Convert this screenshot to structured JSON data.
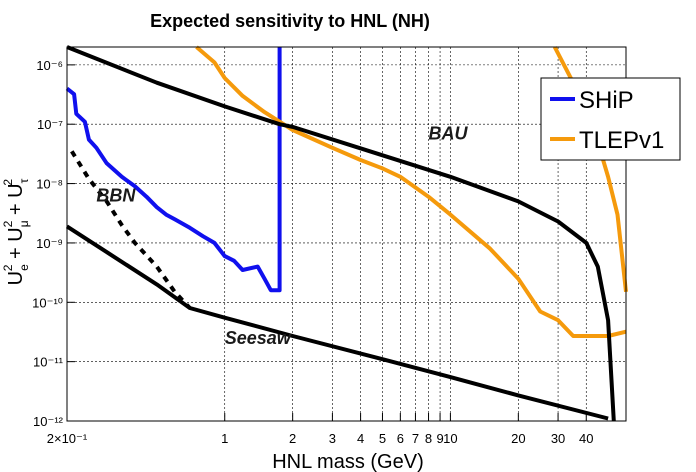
{
  "chart_data": {
    "type": "line",
    "title": "Expected sensitivity to HNL (NH)",
    "xlabel": "HNL mass (GeV)",
    "ylabel": "U_e^2 + U_μ^2 + U_τ^2",
    "x_scale": "log",
    "y_scale": "log",
    "xlim": [
      0.2,
      60
    ],
    "ylim": [
      1e-12,
      2e-06
    ],
    "grid": true,
    "legend_position": "top-right",
    "x_ticks": [
      {
        "value": 0.2,
        "label": "2×10⁻¹"
      },
      {
        "value": 1,
        "label": "1"
      },
      {
        "value": 2,
        "label": "2"
      },
      {
        "value": 3,
        "label": "3"
      },
      {
        "value": 4,
        "label": "4"
      },
      {
        "value": 5,
        "label": "5"
      },
      {
        "value": 6,
        "label": "6"
      },
      {
        "value": 7,
        "label": "7"
      },
      {
        "value": 8,
        "label": "8"
      },
      {
        "value": 9,
        "label": "9"
      },
      {
        "value": 10,
        "label": "10"
      },
      {
        "value": 20,
        "label": "20"
      },
      {
        "value": 30,
        "label": "30"
      },
      {
        "value": 40,
        "label": "40"
      }
    ],
    "y_ticks": [
      {
        "value": 1e-12,
        "label": "10⁻¹²"
      },
      {
        "value": 1e-11,
        "label": "10⁻¹¹"
      },
      {
        "value": 1e-10,
        "label": "10⁻¹⁰"
      },
      {
        "value": 1e-09,
        "label": "10⁻⁹"
      },
      {
        "value": 1e-08,
        "label": "10⁻⁸"
      },
      {
        "value": 1e-07,
        "label": "10⁻⁷"
      },
      {
        "value": 1e-06,
        "label": "10⁻⁶"
      }
    ],
    "annotations": [
      {
        "text": "BAU",
        "x": 8.0,
        "y": 5.5e-08
      },
      {
        "text": "BBN",
        "x": 0.27,
        "y": 5e-09
      },
      {
        "text": "Seesaw",
        "x": 1.0,
        "y": 2e-11
      }
    ],
    "series": [
      {
        "name": "SHiP",
        "color": "#1010ee",
        "in_legend": true,
        "points": [
          [
            0.2,
            4e-07
          ],
          [
            0.215,
            3.2e-07
          ],
          [
            0.22,
            1.5e-07
          ],
          [
            0.24,
            1.1e-07
          ],
          [
            0.25,
            5.5e-08
          ],
          [
            0.27,
            4e-08
          ],
          [
            0.3,
            2.2e-08
          ],
          [
            0.35,
            1.3e-08
          ],
          [
            0.4,
            9e-09
          ],
          [
            0.45,
            6e-09
          ],
          [
            0.5,
            4e-09
          ],
          [
            0.55,
            3e-09
          ],
          [
            0.6,
            2.5e-09
          ],
          [
            0.7,
            1.8e-09
          ],
          [
            0.8,
            1.3e-09
          ],
          [
            0.9,
            1e-09
          ],
          [
            1.0,
            6e-10
          ],
          [
            1.1,
            5e-10
          ],
          [
            1.2,
            3.5e-10
          ],
          [
            1.4,
            4e-10
          ],
          [
            1.5,
            2.5e-10
          ],
          [
            1.6,
            1.6e-10
          ],
          [
            1.75,
            1.6e-10
          ],
          [
            1.75,
            2e-06
          ]
        ]
      },
      {
        "name": "TLEPv1",
        "color": "#f59a0c",
        "in_legend": true,
        "points": [
          [
            0.75,
            2e-06
          ],
          [
            0.9,
            1.1e-06
          ],
          [
            1.0,
            6e-07
          ],
          [
            1.2,
            3e-07
          ],
          [
            1.5,
            1.6e-07
          ],
          [
            2.0,
            8e-08
          ],
          [
            3.0,
            4e-08
          ],
          [
            4.0,
            2.5e-08
          ],
          [
            5.0,
            1.8e-08
          ],
          [
            6.0,
            1.3e-08
          ],
          [
            8.0,
            6e-09
          ],
          [
            10.0,
            3e-09
          ],
          [
            15.0,
            8e-10
          ],
          [
            20.0,
            2.5e-10
          ],
          [
            25.0,
            7e-11
          ],
          [
            30.0,
            5e-11
          ],
          [
            35.0,
            2.7e-11
          ],
          [
            50.0,
            2.7e-11
          ],
          [
            60.0,
            3.2e-11
          ]
        ]
      },
      {
        "name": "TLEPv1-upper",
        "color": "#f59a0c",
        "in_legend": false,
        "points": [
          [
            29.0,
            2e-06
          ],
          [
            35.0,
            5e-07
          ],
          [
            40.0,
            1.8e-07
          ],
          [
            45.0,
            5e-08
          ],
          [
            50.0,
            1.3e-08
          ],
          [
            55.0,
            3e-09
          ],
          [
            60.0,
            1.5e-10
          ]
        ]
      },
      {
        "name": "BAU",
        "color": "#000000",
        "in_legend": false,
        "points": [
          [
            0.2,
            2e-06
          ],
          [
            0.5,
            5e-07
          ],
          [
            1.0,
            2e-07
          ],
          [
            1.75,
            1e-07
          ],
          [
            2.0,
            9e-08
          ],
          [
            5.0,
            3e-08
          ],
          [
            10.0,
            1.3e-08
          ],
          [
            20.0,
            5e-09
          ],
          [
            30.0,
            2.3e-09
          ],
          [
            40.0,
            1e-09
          ],
          [
            45.0,
            4e-10
          ],
          [
            50.0,
            5e-11
          ],
          [
            53.0,
            1e-12
          ]
        ]
      },
      {
        "name": "Seesaw",
        "color": "#000000",
        "in_legend": false,
        "points": [
          [
            0.2,
            1.9e-09
          ],
          [
            0.3,
            7e-10
          ],
          [
            0.5,
            2e-10
          ],
          [
            0.7,
            8e-11
          ],
          [
            1.0,
            5.5e-11
          ],
          [
            2.0,
            2.7e-11
          ],
          [
            5.0,
            1.1e-11
          ],
          [
            10.0,
            5.5e-12
          ],
          [
            20.0,
            2.7e-12
          ],
          [
            50.0,
            1.1e-12
          ]
        ]
      },
      {
        "name": "BBN",
        "color": "#000000",
        "dashed": true,
        "in_legend": false,
        "points": [
          [
            0.21,
            3.5e-08
          ],
          [
            0.25,
            1.2e-08
          ],
          [
            0.3,
            5e-09
          ],
          [
            0.35,
            2e-09
          ],
          [
            0.4,
            1e-09
          ],
          [
            0.5,
            4e-10
          ],
          [
            0.6,
            1.5e-10
          ],
          [
            0.7,
            8e-11
          ]
        ]
      }
    ]
  }
}
